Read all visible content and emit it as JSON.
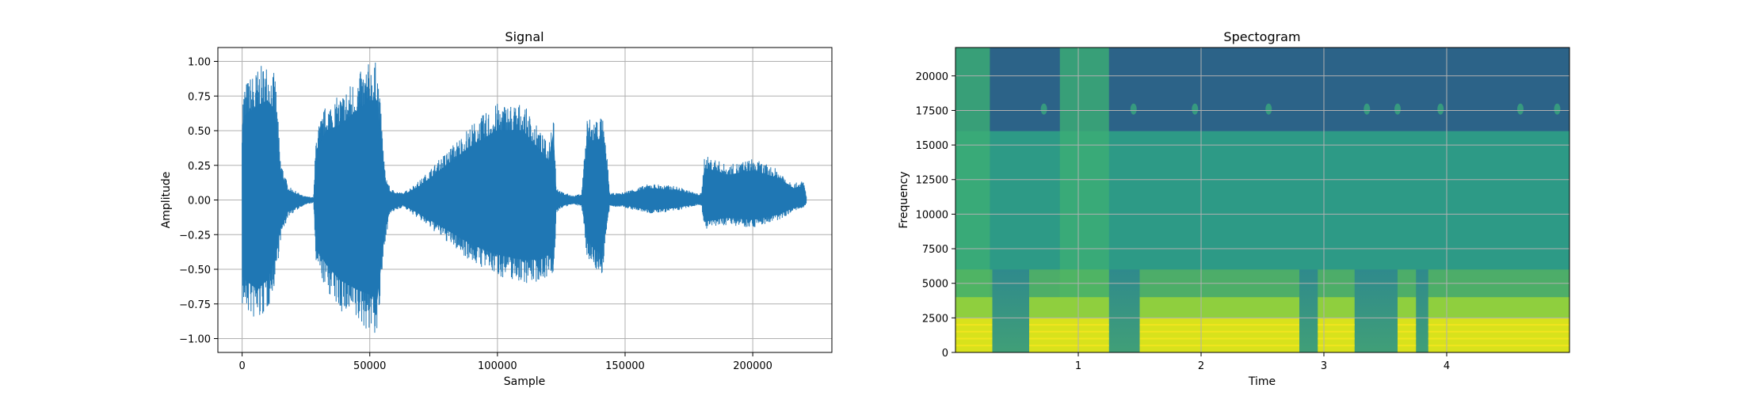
{
  "chart_data": [
    {
      "type": "line",
      "title": "Signal",
      "xlabel": "Sample",
      "ylabel": "Amplitude",
      "xlim": [
        -9500,
        231000
      ],
      "ylim": [
        -1.1,
        1.1
      ],
      "grid": true,
      "line_color": "#1f77b4",
      "x_ticks": [
        0,
        50000,
        100000,
        150000,
        200000
      ],
      "x_tick_labels": [
        "0",
        "50000",
        "100000",
        "150000",
        "200000"
      ],
      "y_ticks": [
        1.0,
        0.75,
        0.5,
        0.25,
        0.0,
        -0.25,
        -0.5,
        -0.75,
        -1.0
      ],
      "y_tick_labels": [
        "1.00",
        "0.75",
        "0.50",
        "0.25",
        "0.00",
        "−0.25",
        "−0.50",
        "−0.75",
        "−1.00"
      ],
      "envelope": {
        "x": [
          0,
          1000,
          6000,
          10000,
          13000,
          15000,
          18000,
          24000,
          28000,
          29000,
          33000,
          38000,
          45000,
          50000,
          53000,
          56000,
          58000,
          63000,
          70000,
          80000,
          90000,
          100000,
          110000,
          115000,
          120000,
          122000,
          123000,
          125000,
          130000,
          133000,
          135000,
          138000,
          141000,
          143000,
          144000,
          148000,
          160000,
          170000,
          178000,
          180000,
          181000,
          185000,
          190000,
          200000,
          210000,
          216000,
          220000,
          221000
        ],
        "upper": [
          0.75,
          0.85,
          0.95,
          1.0,
          0.9,
          0.3,
          0.1,
          0.03,
          0.02,
          0.5,
          0.7,
          0.75,
          0.9,
          1.0,
          1.0,
          0.2,
          0.08,
          0.05,
          0.15,
          0.35,
          0.55,
          0.7,
          0.7,
          0.55,
          0.4,
          0.7,
          0.1,
          0.06,
          0.03,
          0.05,
          0.6,
          0.6,
          0.62,
          0.3,
          0.05,
          0.05,
          0.12,
          0.1,
          0.05,
          0.05,
          0.32,
          0.3,
          0.25,
          0.3,
          0.22,
          0.12,
          0.14,
          0.03
        ],
        "lower": [
          -0.77,
          -0.8,
          -0.9,
          -0.8,
          -0.6,
          -0.3,
          -0.12,
          -0.04,
          -0.02,
          -0.5,
          -0.65,
          -0.8,
          -0.9,
          -0.95,
          -1.0,
          -0.3,
          -0.1,
          -0.05,
          -0.15,
          -0.3,
          -0.45,
          -0.55,
          -0.6,
          -0.6,
          -0.55,
          -0.65,
          -0.1,
          -0.06,
          -0.03,
          -0.05,
          -0.4,
          -0.5,
          -0.55,
          -0.2,
          -0.05,
          -0.05,
          -0.1,
          -0.08,
          -0.04,
          -0.04,
          -0.22,
          -0.2,
          -0.18,
          -0.2,
          -0.15,
          -0.08,
          -0.06,
          -0.03
        ]
      }
    },
    {
      "type": "heatmap",
      "title": "Spectogram",
      "xlabel": "Time",
      "ylabel": "Frequency",
      "xlim": [
        0.0,
        5.0
      ],
      "ylim": [
        0,
        22050
      ],
      "grid": true,
      "colormap": "viridis",
      "x_ticks": [
        1,
        2,
        3,
        4
      ],
      "x_tick_labels": [
        "1",
        "2",
        "3",
        "4"
      ],
      "y_ticks": [
        0,
        2500,
        5000,
        7500,
        10000,
        12500,
        15000,
        17500,
        20000
      ],
      "y_tick_labels": [
        "0",
        "2500",
        "5000",
        "7500",
        "10000",
        "12500",
        "15000",
        "17500",
        "20000"
      ],
      "cutoff_frequency": 16000,
      "voiced_segments": [
        [
          0.0,
          0.3
        ],
        [
          0.6,
          1.25
        ],
        [
          1.5,
          2.8
        ],
        [
          2.95,
          3.25
        ],
        [
          3.6,
          3.75
        ],
        [
          3.85,
          5.0
        ]
      ],
      "broadband_segments": [
        [
          0.0,
          0.28
        ],
        [
          0.85,
          1.25
        ]
      ]
    }
  ]
}
